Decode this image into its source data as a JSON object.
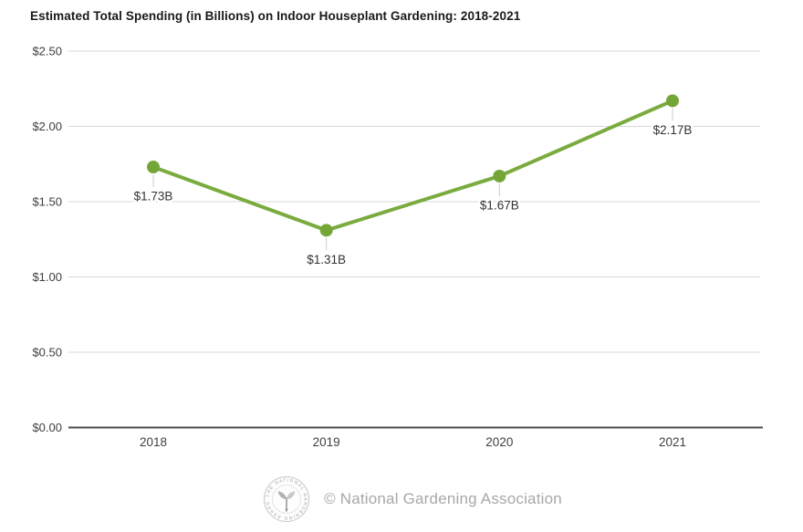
{
  "page": {
    "background": "#ffffff"
  },
  "chart_data": {
    "type": "line",
    "title": "Estimated Total Spending (in Billions) on Indoor Houseplant Gardening: 2018-2021",
    "xlabel": "",
    "ylabel": "",
    "categories": [
      "2018",
      "2019",
      "2020",
      "2021"
    ],
    "values": [
      1.73,
      1.31,
      1.67,
      2.17
    ],
    "point_labels": [
      "$1.73B",
      "$1.31B",
      "$1.67B",
      "$2.17B"
    ],
    "ylim": [
      0,
      2.5
    ],
    "ytick_values": [
      0,
      0.5,
      1.0,
      1.5,
      2.0,
      2.5
    ],
    "ytick_labels": [
      "$0.00",
      "$0.50",
      "$1.00",
      "$1.50",
      "$2.00",
      "$2.50"
    ],
    "grid": true,
    "legend": "none",
    "colors": {
      "line": "#7aab3e",
      "point": "#74a637",
      "gridline": "#d8d8d8",
      "axis": "#4a4a4a",
      "tick_label": "#404040",
      "point_label": "#333333",
      "leader_line": "#cccccc"
    }
  },
  "footer": {
    "credit": "© National Gardening Association",
    "logo_name": "national-gardening-association-seal",
    "logo_ring_text": "THE NATIONAL GARDENING ASSOCIATION",
    "text_color": "#a8a8a8"
  }
}
